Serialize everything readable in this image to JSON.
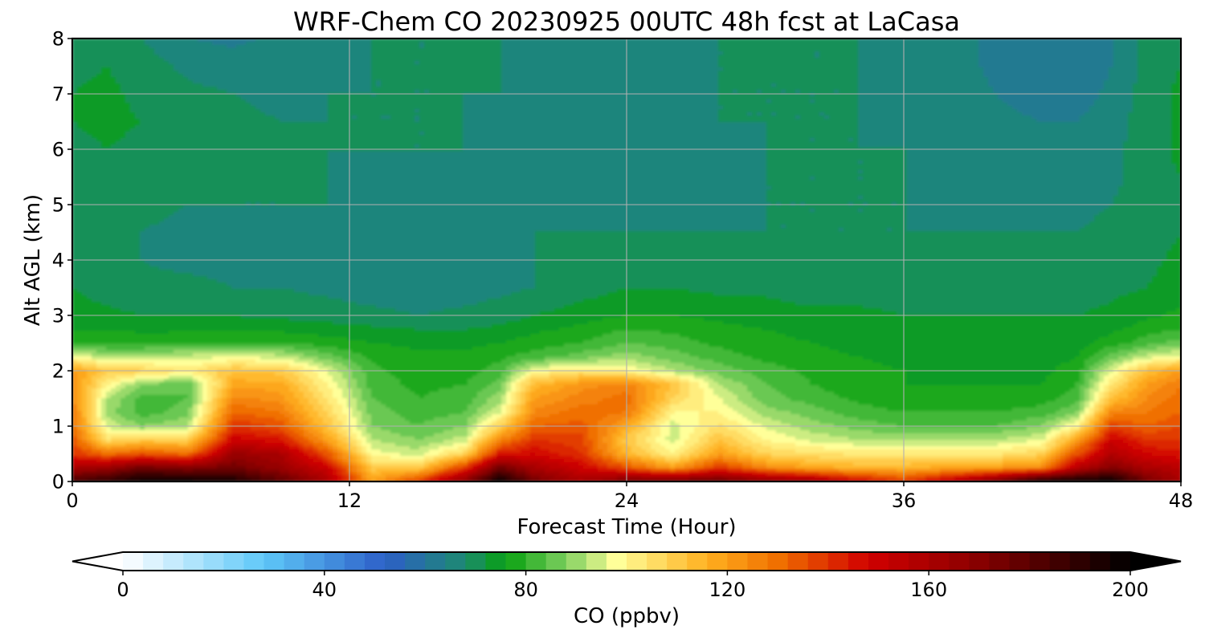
{
  "chart_data": {
    "type": "heatmap",
    "title": "WRF-Chem CO  20230925 00UTC 48h fcst at LaCasa",
    "xlabel": "Forecast Time (Hour)",
    "ylabel": "Alt AGL (km)",
    "xlim": [
      0,
      48
    ],
    "ylim": [
      0,
      8
    ],
    "x_ticks": [
      "0",
      "12",
      "24",
      "36",
      "48"
    ],
    "x_tick_values": [
      0,
      12,
      24,
      36,
      48
    ],
    "y_ticks": [
      "0",
      "1",
      "2",
      "3",
      "4",
      "5",
      "6",
      "7",
      "8"
    ],
    "y_tick_values": [
      0,
      1,
      2,
      3,
      4,
      5,
      6,
      7,
      8
    ],
    "grid": true,
    "grid_color": "#b0b0b0",
    "colorbar": {
      "label": "CO  (ppbv)",
      "min": 0,
      "max": 200,
      "step": 4,
      "ticks": [
        "0",
        "40",
        "80",
        "120",
        "160",
        "200"
      ],
      "tick_values": [
        0,
        40,
        80,
        120,
        160,
        200
      ],
      "extend": "both",
      "extend_low_color": "#ffffff",
      "extend_high_color": "#000000",
      "color_stops": [
        {
          "v": 0,
          "c": "#ffffff"
        },
        {
          "v": 28,
          "c": "#5ec8f8"
        },
        {
          "v": 52,
          "c": "#2d5fc8"
        },
        {
          "v": 68,
          "c": "#1d8a70"
        },
        {
          "v": 76,
          "c": "#07a010"
        },
        {
          "v": 88,
          "c": "#7fd060"
        },
        {
          "v": 98,
          "c": "#ffff99"
        },
        {
          "v": 116,
          "c": "#ffb020"
        },
        {
          "v": 130,
          "c": "#f07000"
        },
        {
          "v": 148,
          "c": "#d00000"
        },
        {
          "v": 168,
          "c": "#900000"
        },
        {
          "v": 200,
          "c": "#000000"
        }
      ]
    },
    "field": {
      "x": [
        0,
        1.5,
        3,
        5,
        7,
        9,
        11,
        13,
        15,
        17,
        18.5,
        20,
        22,
        24,
        26,
        28,
        30,
        32,
        34,
        36,
        38,
        40,
        42,
        43.5,
        45,
        46.5,
        48
      ],
      "y": [
        0,
        0.25,
        0.5,
        0.75,
        1,
        1.25,
        1.5,
        1.75,
        2,
        2.25,
        2.5,
        2.75,
        3,
        3.5,
        4,
        4.5,
        5,
        5.5,
        6,
        6.5,
        7,
        7.5,
        8
      ],
      "z": [
        [
          185,
          190,
          200,
          200,
          195,
          180,
          160,
          120,
          140,
          170,
          200,
          175,
          160,
          175,
          178,
          178,
          170,
          165,
          150,
          140,
          155,
          175,
          200,
          200,
          200,
          175,
          160
        ],
        [
          160,
          165,
          175,
          170,
          175,
          165,
          150,
          110,
          110,
          140,
          175,
          160,
          150,
          135,
          120,
          140,
          125,
          118,
          115,
          115,
          118,
          120,
          125,
          155,
          170,
          160,
          155
        ],
        [
          140,
          130,
          135,
          130,
          165,
          160,
          135,
          98,
          94,
          108,
          145,
          148,
          140,
          115,
          100,
          120,
          108,
          105,
          103,
          103,
          103,
          103,
          108,
          135,
          158,
          148,
          145
        ],
        [
          135,
          105,
          110,
          108,
          150,
          145,
          120,
          92,
          88,
          94,
          125,
          140,
          138,
          110,
          94,
          112,
          100,
          95,
          92,
          92,
          92,
          92,
          96,
          120,
          150,
          140,
          140
        ],
        [
          130,
          95,
          88,
          92,
          140,
          135,
          112,
          88,
          84,
          88,
          108,
          132,
          134,
          118,
          94,
          105,
          95,
          90,
          86,
          84,
          84,
          84,
          88,
          100,
          138,
          132,
          136
        ],
        [
          128,
          90,
          82,
          86,
          132,
          128,
          108,
          86,
          82,
          84,
          96,
          125,
          130,
          128,
          100,
          100,
          90,
          86,
          82,
          80,
          80,
          80,
          82,
          88,
          125,
          128,
          132
        ],
        [
          125,
          92,
          82,
          84,
          125,
          122,
          104,
          84,
          80,
          82,
          90,
          120,
          126,
          130,
          108,
          96,
          86,
          82,
          79,
          77,
          77,
          77,
          78,
          82,
          112,
          124,
          130
        ],
        [
          124,
          100,
          88,
          84,
          118,
          118,
          100,
          82,
          79,
          80,
          86,
          114,
          122,
          126,
          112,
          92,
          84,
          80,
          78,
          76,
          76,
          76,
          76,
          80,
          104,
          120,
          128
        ],
        [
          120,
          110,
          108,
          102,
          112,
          110,
          96,
          81,
          78,
          78,
          82,
          98,
          104,
          100,
          92,
          86,
          82,
          79,
          77,
          76,
          75,
          75,
          75,
          78,
          96,
          112,
          120
        ],
        [
          98,
          92,
          92,
          94,
          96,
          94,
          86,
          79,
          77,
          77,
          79,
          82,
          86,
          90,
          86,
          82,
          79,
          77,
          76,
          75,
          75,
          74,
          74,
          76,
          86,
          94,
          98
        ],
        [
          80,
          79,
          79,
          80,
          80,
          80,
          78,
          76,
          75,
          75,
          76,
          78,
          80,
          84,
          82,
          79,
          77,
          76,
          75,
          74,
          74,
          73,
          73,
          74,
          78,
          82,
          86
        ],
        [
          76,
          76,
          75,
          75,
          75,
          75,
          74,
          73,
          72,
          72,
          73,
          75,
          77,
          80,
          79,
          77,
          76,
          75,
          74,
          73,
          73,
          73,
          73,
          73,
          75,
          78,
          80
        ],
        [
          74,
          73,
          72,
          72,
          72,
          71,
          70,
          69,
          68,
          69,
          70,
          72,
          74,
          76,
          76,
          75,
          74,
          73,
          73,
          72,
          72,
          72,
          72,
          72,
          73,
          75,
          77
        ],
        [
          72,
          70,
          69,
          69,
          68,
          68,
          67,
          66,
          66,
          66,
          67,
          68,
          70,
          72,
          72,
          71,
          71,
          70,
          70,
          70,
          70,
          70,
          70,
          70,
          71,
          72,
          74
        ],
        [
          71,
          69,
          68,
          67,
          67,
          67,
          66,
          66,
          66,
          66,
          67,
          68,
          69,
          70,
          70,
          70,
          69,
          69,
          69,
          69,
          69,
          69,
          69,
          69,
          70,
          71,
          73
        ],
        [
          70,
          69,
          68,
          67,
          67,
          67,
          67,
          67,
          67,
          67,
          67,
          68,
          68,
          68,
          68,
          68,
          68,
          68,
          68,
          68,
          68,
          68,
          68,
          68,
          69,
          70,
          72
        ],
        [
          69,
          70,
          69,
          68,
          68,
          68,
          68,
          67,
          67,
          67,
          67,
          67,
          66,
          65,
          66,
          67,
          68,
          68,
          68,
          68,
          67,
          67,
          67,
          67,
          68,
          70,
          72
        ],
        [
          70,
          71,
          70,
          69,
          68,
          68,
          68,
          67,
          67,
          67,
          67,
          67,
          66,
          65,
          66,
          67,
          68,
          68,
          68,
          68,
          67,
          66,
          66,
          66,
          67,
          70,
          72
        ],
        [
          71,
          72,
          71,
          70,
          69,
          68,
          68,
          68,
          68,
          68,
          67,
          67,
          66,
          65,
          66,
          67,
          68,
          68,
          68,
          68,
          67,
          66,
          65,
          65,
          67,
          70,
          73
        ],
        [
          72,
          73,
          72,
          70,
          69,
          68,
          68,
          68,
          68,
          68,
          67,
          67,
          66,
          66,
          67,
          68,
          68,
          68,
          68,
          67,
          66,
          65,
          64,
          64,
          66,
          70,
          73
        ],
        [
          72,
          73,
          71,
          69,
          68,
          67,
          68,
          68,
          68,
          68,
          68,
          67,
          66,
          66,
          67,
          68,
          68,
          68,
          68,
          67,
          66,
          64,
          62,
          62,
          65,
          70,
          73
        ],
        [
          71,
          72,
          70,
          67,
          66,
          66,
          67,
          68,
          68,
          68,
          68,
          67,
          66,
          66,
          67,
          68,
          68,
          68,
          68,
          67,
          66,
          63,
          61,
          61,
          64,
          69,
          72
        ],
        [
          70,
          71,
          68,
          64,
          63,
          65,
          67,
          68,
          68,
          68,
          68,
          67,
          67,
          67,
          68,
          68,
          68,
          68,
          68,
          67,
          66,
          63,
          61,
          62,
          64,
          69,
          72
        ]
      ]
    }
  }
}
